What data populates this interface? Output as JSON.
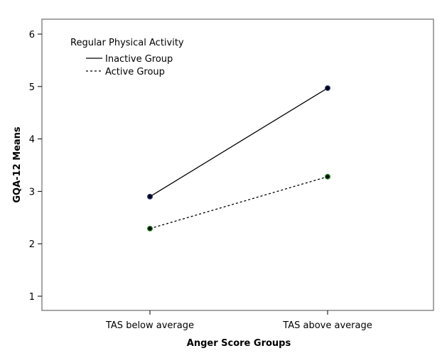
{
  "chart_data": {
    "type": "line",
    "title": "",
    "xlabel": "Anger Score Groups",
    "ylabel": "GQA-12 Means",
    "categories": [
      "TAS below average",
      "TAS above average"
    ],
    "ylim": [
      0.75,
      6.25
    ],
    "yticks": [
      1,
      2,
      3,
      4,
      5,
      6
    ],
    "grid": false,
    "legend": {
      "title": "Regular Physical Activity",
      "placement": "top-left"
    },
    "series": [
      {
        "name": "Inactive Group",
        "values": [
          2.9,
          4.97
        ],
        "style": "solid",
        "marker_color": "#1f2f7a"
      },
      {
        "name": "Active Group",
        "values": [
          2.29,
          3.28
        ],
        "style": "dashed",
        "marker_color": "#1a8a1a"
      }
    ]
  }
}
